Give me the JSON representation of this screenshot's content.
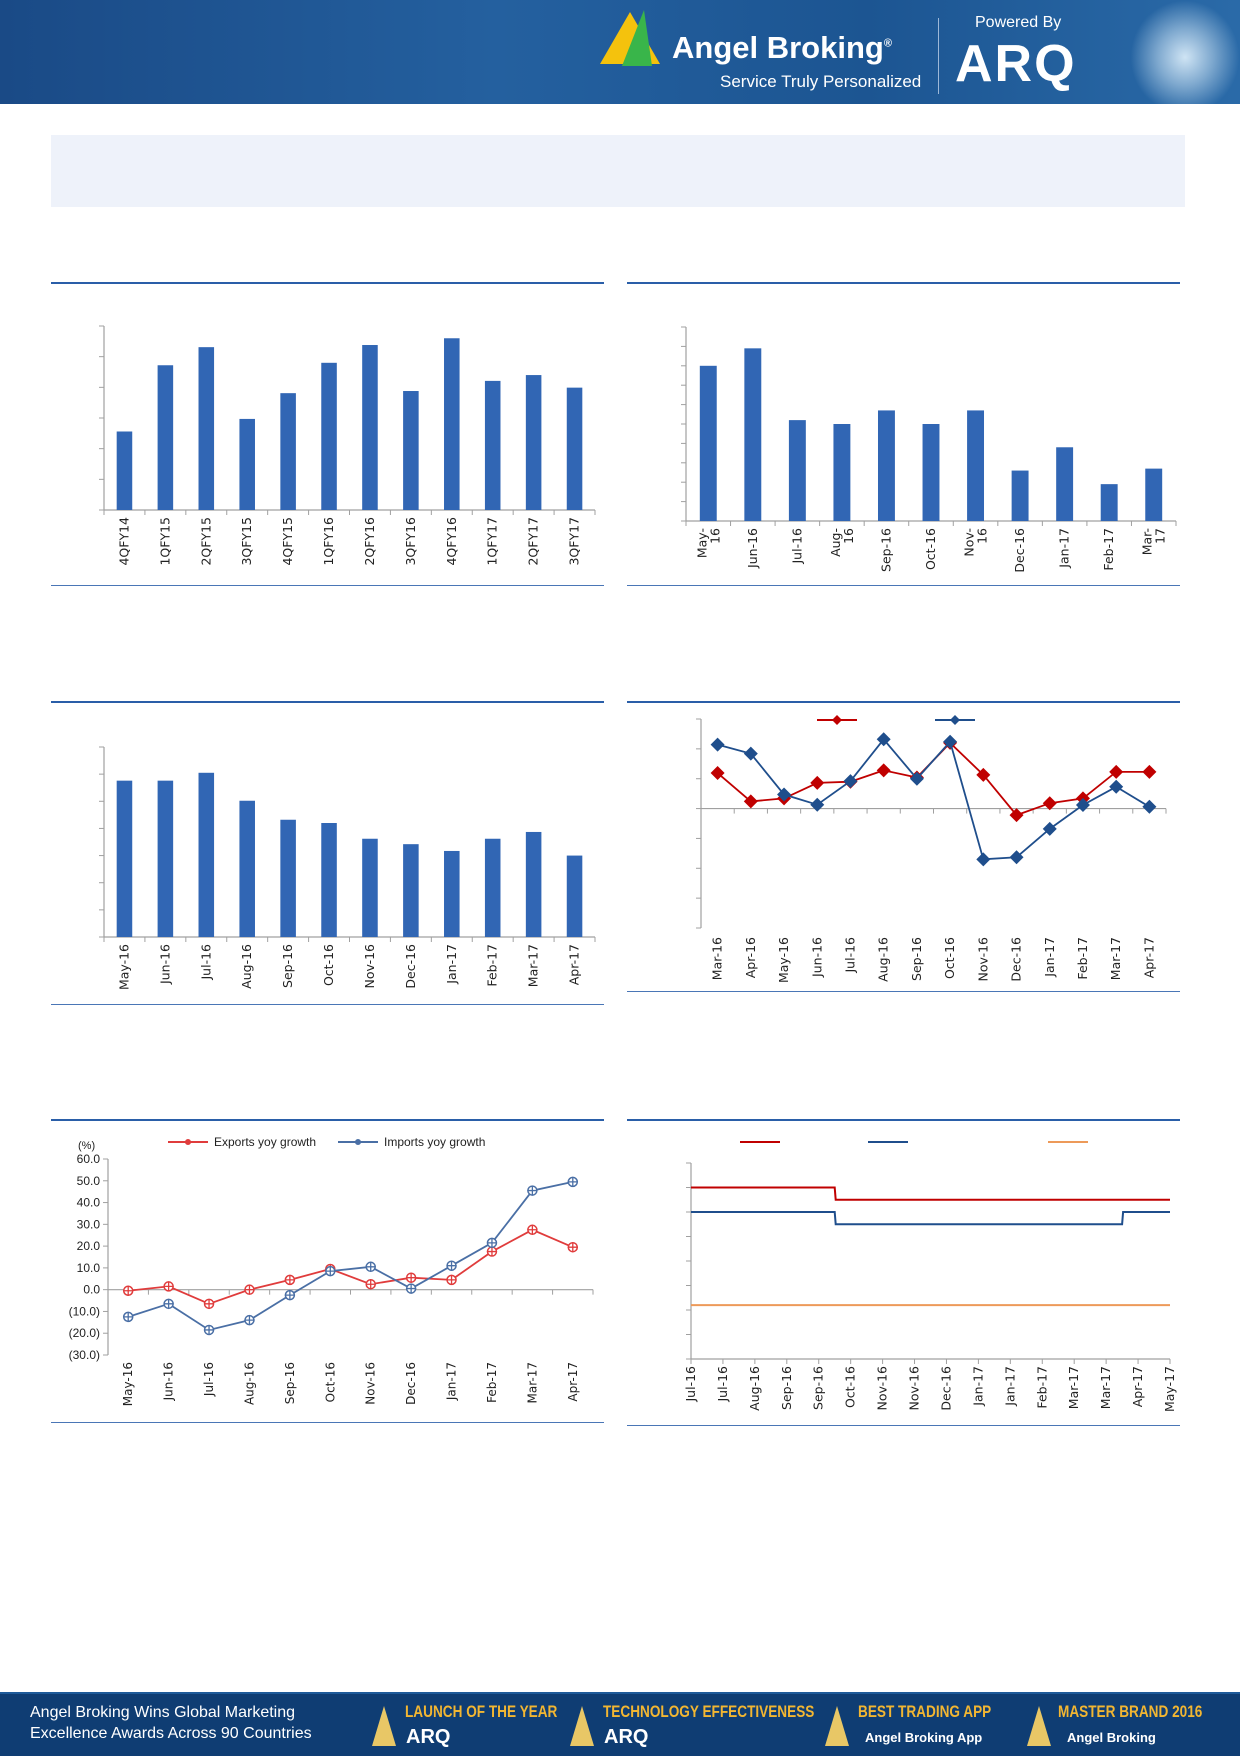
{
  "header": {
    "brand_name": "Angel Broking",
    "brand_registered": "®",
    "tagline": "Service Truly Personalized",
    "powered_by": "Powered By",
    "arq_logo": "ARQ",
    "colors": {
      "background": "#1c5592",
      "logo_yellow": "#f4c20d",
      "logo_green": "#39b54a"
    }
  },
  "colors": {
    "rule": "#2a5ea8",
    "bar": "#3166b4",
    "red_series": "#c00000",
    "blue_series": "#1f4e8c",
    "orange_series": "#ed9a59"
  },
  "chart_data": [
    {
      "id": "chart1",
      "type": "bar",
      "categories": [
        "4QFY14",
        "1QFY15",
        "2QFY15",
        "3QFY15",
        "4QFY15",
        "1QFY16",
        "2QFY16",
        "3QFY16",
        "4QFY16",
        "1QFY17",
        "2QFY17",
        "3QFY17"
      ],
      "values": [
        2.56,
        4.72,
        5.31,
        2.97,
        3.81,
        4.8,
        5.38,
        3.88,
        5.6,
        4.21,
        4.4,
        3.99
      ],
      "ylim": [
        0,
        6
      ],
      "yticks": 6,
      "grid": false
    },
    {
      "id": "chart2",
      "type": "bar",
      "categories": [
        "May-\n16",
        "Jun-16",
        "Jul-16",
        "Aug-\n16",
        "Sep-16",
        "Oct-16",
        "Nov-\n16",
        "Dec-16",
        "Jan-17",
        "Feb-17",
        "Mar-\n17"
      ],
      "values": [
        8.0,
        8.9,
        5.2,
        5.0,
        5.7,
        5.0,
        5.7,
        2.6,
        3.8,
        1.9,
        2.7
      ],
      "ylim": [
        0,
        10
      ],
      "yticks": 10,
      "grid": false
    },
    {
      "id": "chart3",
      "type": "bar",
      "categories": [
        "May-16",
        "Jun-16",
        "Jul-16",
        "Aug-16",
        "Sep-16",
        "Oct-16",
        "Nov-16",
        "Dec-16",
        "Jan-17",
        "Feb-17",
        "Mar-17",
        "Apr-17"
      ],
      "values": [
        5.76,
        5.76,
        6.05,
        5.02,
        4.32,
        4.2,
        3.62,
        3.42,
        3.17,
        3.62,
        3.87,
        3.0
      ],
      "ylim": [
        0,
        7
      ],
      "yticks": 7,
      "grid": false
    },
    {
      "id": "chart4",
      "type": "line",
      "categories": [
        "Mar-16",
        "Apr-16",
        "May-16",
        "Jun-16",
        "Jul-16",
        "Aug-16",
        "Sep-16",
        "Oct-16",
        "Nov-16",
        "Dec-16",
        "Jan-17",
        "Feb-17",
        "Mar-17",
        "Apr-17"
      ],
      "series": [
        {
          "color": "#c00000",
          "marker": "diamond",
          "values": [
            1.19,
            0.24,
            0.34,
            0.86,
            0.9,
            1.28,
            1.04,
            2.2,
            1.13,
            -0.22,
            0.18,
            0.34,
            1.23,
            1.23
          ]
        },
        {
          "color": "#1f4e8c",
          "marker": "diamond",
          "values": [
            2.14,
            1.84,
            0.47,
            0.13,
            0.92,
            2.32,
            1.0,
            2.24,
            -1.7,
            -1.63,
            -0.68,
            0.12,
            0.73,
            0.06
          ]
        }
      ],
      "ylim": [
        -4,
        3
      ],
      "yticks": 7,
      "legend": "top",
      "grid": false
    },
    {
      "id": "chart5",
      "type": "line",
      "ylabel": "(%)",
      "categories": [
        "May-16",
        "Jun-16",
        "Jul-16",
        "Aug-16",
        "Sep-16",
        "Oct-16",
        "Nov-16",
        "Dec-16",
        "Jan-17",
        "Feb-17",
        "Mar-17",
        "Apr-17"
      ],
      "series": [
        {
          "name": "Exports yoy growth",
          "color": "#e03c3c",
          "marker": "plus-circle",
          "values": [
            -0.5,
            1.5,
            -6.5,
            0.0,
            4.5,
            9.5,
            2.5,
            5.5,
            4.5,
            17.5,
            27.5,
            19.5
          ]
        },
        {
          "name": "Imports yoy growth",
          "color": "#4a6fa5",
          "marker": "plus-circle",
          "values": [
            -12.5,
            -6.5,
            -18.5,
            -14.0,
            -2.5,
            8.5,
            10.5,
            0.5,
            11.0,
            21.5,
            45.5,
            49.5
          ]
        }
      ],
      "ytick_labels": [
        "60.0",
        "50.0",
        "40.0",
        "30.0",
        "20.0",
        "10.0",
        "0.0",
        "(10.0)",
        "(20.0)",
        "(30.0)"
      ],
      "ylim": [
        -30,
        60
      ],
      "legend": "top",
      "grid": false
    },
    {
      "id": "chart6",
      "type": "line",
      "categories": [
        "Jul-16",
        "Jul-16",
        "Aug-16",
        "Sep-16",
        "Sep-16",
        "Oct-16",
        "Nov-16",
        "Nov-16",
        "Dec-16",
        "Jan-17",
        "Jan-17",
        "Feb-17",
        "Mar-17",
        "Mar-17",
        "Apr-17",
        "May-17"
      ],
      "series": [
        {
          "color": "#c00000",
          "step": true,
          "values": [
            7.0,
            7.0,
            7.0,
            7.0,
            7.0,
            6.5,
            6.5,
            6.5,
            6.5,
            6.5,
            6.5,
            6.5,
            6.5,
            6.5,
            6.5,
            6.5
          ]
        },
        {
          "color": "#1f4e8c",
          "step": true,
          "values": [
            6.0,
            6.0,
            6.0,
            6.0,
            6.0,
            5.5,
            5.5,
            5.5,
            5.5,
            5.5,
            5.5,
            5.5,
            5.5,
            5.5,
            6.0,
            6.0
          ]
        },
        {
          "color": "#ed9a59",
          "step": true,
          "values": [
            2.2,
            2.2,
            2.2,
            2.2,
            2.2,
            2.2,
            2.2,
            2.2,
            2.2,
            2.2,
            2.2,
            2.2,
            2.2,
            2.2,
            2.2,
            2.2
          ]
        }
      ],
      "ylim": [
        0,
        8
      ],
      "yticks": 8,
      "legend": "top",
      "grid": false
    }
  ],
  "footer": {
    "text_line1": "Angel Broking Wins Global Marketing",
    "text_line2": "Excellence Awards Across 90 Countries",
    "awards": [
      {
        "title": "LAUNCH OF THE YEAR",
        "sub": "ARQ"
      },
      {
        "title": "TECHNOLOGY EFFECTIVENESS",
        "sub": "ARQ"
      },
      {
        "title": "BEST TRADING APP",
        "sub": "Angel Broking App"
      },
      {
        "title": "MASTER BRAND 2016",
        "sub": "Angel Broking"
      }
    ]
  }
}
